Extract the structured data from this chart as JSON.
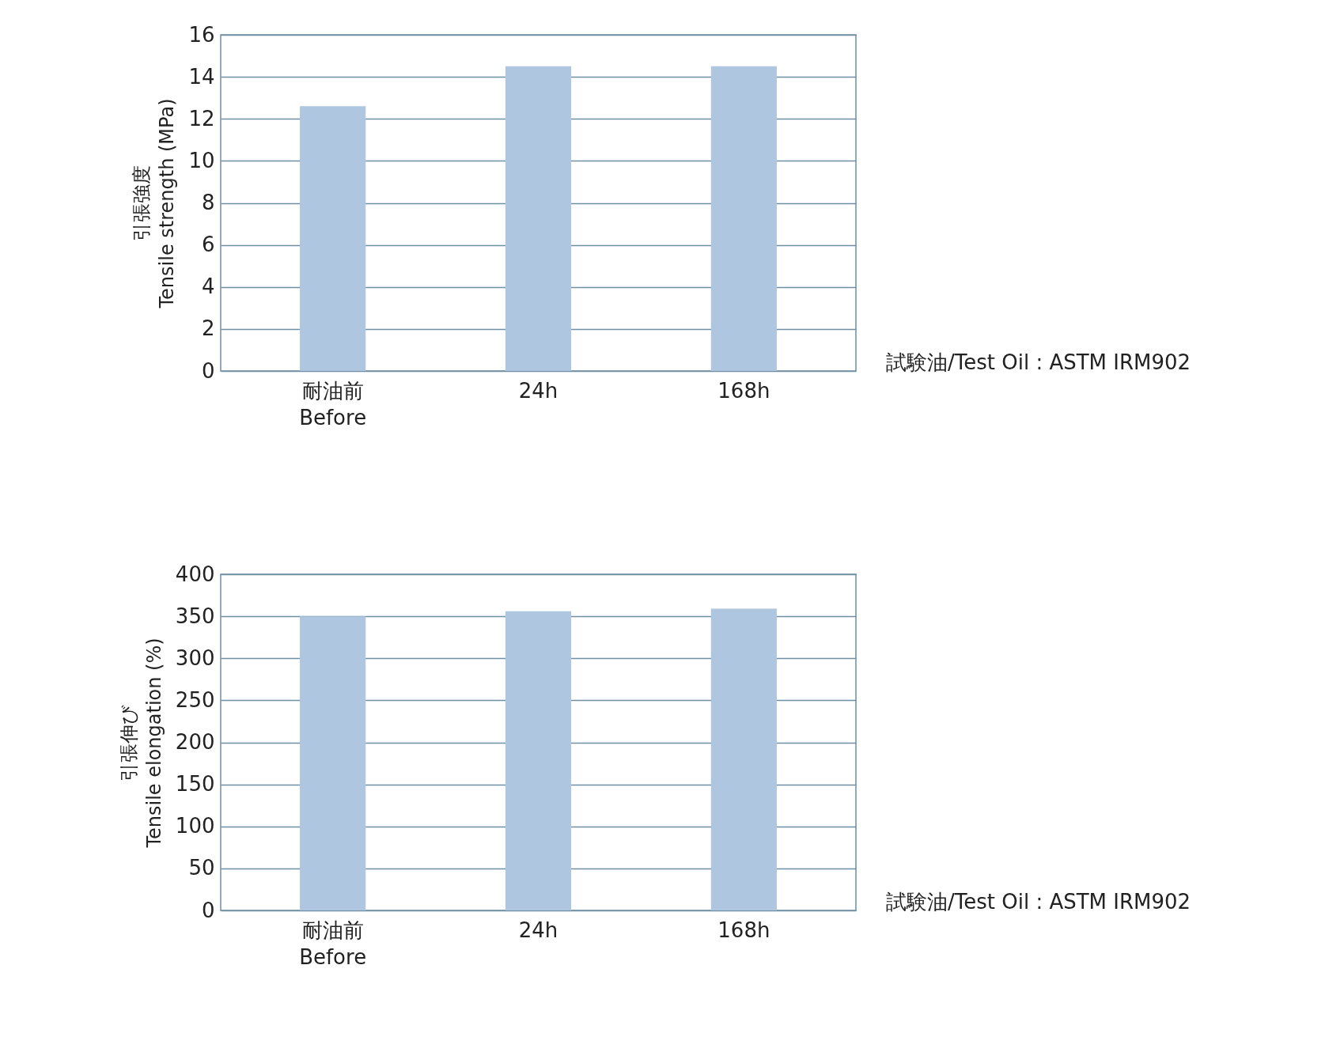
{
  "chart_data": [
    {
      "type": "bar",
      "ylabel": "引張強度\nTensile strength (MPa)",
      "categories": [
        "耐油前\nBefore",
        "24h",
        "168h"
      ],
      "values": [
        12.6,
        14.5,
        14.5
      ],
      "color": "#aec6df",
      "ylim": [
        0,
        16
      ],
      "yticks": [
        0,
        2,
        4,
        6,
        8,
        10,
        12,
        14,
        16
      ],
      "grid": "y",
      "annotations": [
        "試験油/Test Oil : ASTM IRM902"
      ]
    },
    {
      "type": "bar",
      "ylabel": "引張伸び\nTensile elongation (%)",
      "categories": [
        "耐油前\nBefore",
        "24h",
        "168h"
      ],
      "values": [
        350,
        356,
        359
      ],
      "color": "#aec6df",
      "ylim": [
        0,
        400
      ],
      "yticks": [
        0,
        50,
        100,
        150,
        200,
        250,
        300,
        350,
        400
      ],
      "grid": "y",
      "annotations": [
        "試験油/Test Oil : ASTM IRM902"
      ]
    }
  ]
}
